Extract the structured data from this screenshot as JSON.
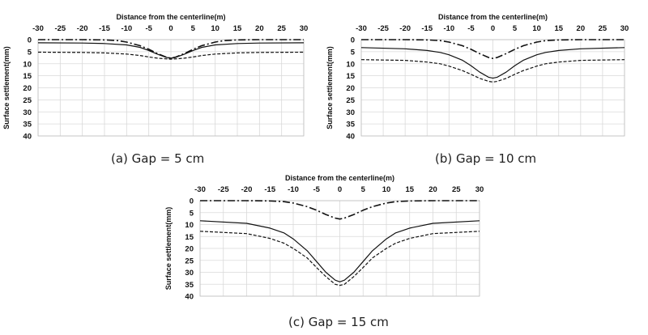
{
  "chart_data": [
    {
      "type": "line",
      "panel": "a",
      "caption": "(a) Gap = 5 cm",
      "xlabel": "Distance from the centerline(m)",
      "ylabel": "Surface settlement(mm)",
      "xlim": [
        -30,
        30
      ],
      "ylim": [
        0,
        40
      ],
      "y_inverted": true,
      "x_ticks": [
        -30,
        -25,
        -20,
        -15,
        -10,
        -5,
        0,
        5,
        10,
        15,
        20,
        25,
        30
      ],
      "y_ticks": [
        0,
        5,
        10,
        15,
        20,
        25,
        30,
        35,
        40
      ],
      "grid": true,
      "series": [
        {
          "style": "solid",
          "x": [
            -30,
            -20,
            -15,
            -10,
            -7,
            -5,
            -3,
            -1,
            0,
            1,
            3,
            5,
            7,
            10,
            15,
            20,
            30
          ],
          "y": [
            1.3,
            1.4,
            1.6,
            2.2,
            3.2,
            4.5,
            6.1,
            7.4,
            7.7,
            7.4,
            6.1,
            4.5,
            3.2,
            2.2,
            1.6,
            1.4,
            1.3
          ]
        },
        {
          "style": "dashed",
          "x": [
            -30,
            -20,
            -15,
            -10,
            -7,
            -5,
            -3,
            -1,
            0,
            1,
            3,
            5,
            7,
            10,
            15,
            20,
            30
          ],
          "y": [
            5.2,
            5.3,
            5.5,
            6.0,
            6.6,
            7.2,
            7.7,
            8.0,
            8.1,
            8.0,
            7.7,
            7.2,
            6.6,
            6.0,
            5.5,
            5.3,
            5.2
          ]
        },
        {
          "style": "dash-dot",
          "x": [
            -30,
            -20,
            -15,
            -12,
            -10,
            -7,
            -5,
            -3,
            -1,
            0,
            1,
            3,
            5,
            7,
            10,
            12,
            15,
            20,
            30
          ],
          "y": [
            0.0,
            0.0,
            0.1,
            0.4,
            1.0,
            2.5,
            4.0,
            5.8,
            7.3,
            7.7,
            7.3,
            5.8,
            4.0,
            2.5,
            1.0,
            0.4,
            0.1,
            0.0,
            0.0
          ]
        }
      ]
    },
    {
      "type": "line",
      "panel": "b",
      "caption": "(b) Gap = 10 cm",
      "xlabel": "Distance from the centerline(m)",
      "ylabel": "Surface settlement(mm)",
      "xlim": [
        -30,
        30
      ],
      "ylim": [
        0,
        40
      ],
      "y_inverted": true,
      "x_ticks": [
        -30,
        -25,
        -20,
        -15,
        -10,
        -5,
        0,
        5,
        10,
        15,
        20,
        25,
        30
      ],
      "y_ticks": [
        0,
        5,
        10,
        15,
        20,
        25,
        30,
        35,
        40
      ],
      "grid": true,
      "series": [
        {
          "style": "solid",
          "x": [
            -30,
            -20,
            -15,
            -12,
            -10,
            -7,
            -5,
            -3,
            -1,
            0,
            1,
            3,
            5,
            7,
            10,
            12,
            15,
            20,
            30
          ],
          "y": [
            3.3,
            3.8,
            4.5,
            5.3,
            6.3,
            8.5,
            10.8,
            13.5,
            15.6,
            16.0,
            15.6,
            13.5,
            10.8,
            8.5,
            6.3,
            5.3,
            4.5,
            3.8,
            3.3
          ]
        },
        {
          "style": "dashed",
          "x": [
            -30,
            -20,
            -15,
            -12,
            -10,
            -7,
            -5,
            -3,
            -1,
            0,
            1,
            3,
            5,
            7,
            10,
            12,
            15,
            20,
            30
          ],
          "y": [
            8.3,
            8.6,
            9.3,
            10.0,
            11.0,
            12.8,
            14.4,
            16.1,
            17.3,
            17.6,
            17.3,
            16.1,
            14.4,
            12.8,
            11.0,
            10.0,
            9.3,
            8.6,
            8.3
          ]
        },
        {
          "style": "dash-dot",
          "x": [
            -30,
            -20,
            -15,
            -12,
            -10,
            -7,
            -5,
            -3,
            -1,
            0,
            1,
            3,
            5,
            7,
            10,
            12,
            15,
            20,
            30
          ],
          "y": [
            0.0,
            0.0,
            0.1,
            0.4,
            1.0,
            2.5,
            4.0,
            5.8,
            7.4,
            7.8,
            7.4,
            5.8,
            4.0,
            2.5,
            1.0,
            0.4,
            0.1,
            0.0,
            0.0
          ]
        }
      ]
    },
    {
      "type": "line",
      "panel": "c",
      "caption": "(c) Gap = 15 cm",
      "xlabel": "Distance from the centerline(m)",
      "ylabel": "Surface settlement(mm)",
      "xlim": [
        -30,
        30
      ],
      "ylim": [
        0,
        40
      ],
      "y_inverted": true,
      "x_ticks": [
        -30,
        -25,
        -20,
        -15,
        -10,
        -5,
        0,
        5,
        10,
        15,
        20,
        25,
        30
      ],
      "y_ticks": [
        0,
        5,
        10,
        15,
        20,
        25,
        30,
        35,
        40
      ],
      "grid": true,
      "series": [
        {
          "style": "solid",
          "x": [
            -30,
            -20,
            -15,
            -12,
            -10,
            -7,
            -5,
            -3,
            -1,
            0,
            1,
            3,
            5,
            7,
            10,
            12,
            15,
            20,
            30
          ],
          "y": [
            8.4,
            9.5,
            11.5,
            13.5,
            16.0,
            21.0,
            25.5,
            30.0,
            33.3,
            34.0,
            33.3,
            30.0,
            25.5,
            21.0,
            16.0,
            13.5,
            11.5,
            9.5,
            8.4
          ]
        },
        {
          "style": "dashed",
          "x": [
            -30,
            -20,
            -15,
            -12,
            -10,
            -7,
            -5,
            -3,
            -1,
            0,
            1,
            3,
            5,
            7,
            10,
            12,
            15,
            20,
            30
          ],
          "y": [
            12.8,
            13.8,
            15.8,
            17.8,
            20.0,
            24.0,
            28.0,
            31.8,
            35.0,
            35.5,
            35.0,
            31.8,
            28.0,
            24.0,
            20.0,
            17.8,
            15.8,
            13.8,
            12.8
          ]
        },
        {
          "style": "dash-dot",
          "x": [
            -30,
            -20,
            -15,
            -12,
            -10,
            -7,
            -5,
            -3,
            -1,
            0,
            1,
            3,
            5,
            7,
            10,
            12,
            15,
            20,
            30
          ],
          "y": [
            0.0,
            0.0,
            0.1,
            0.4,
            1.0,
            2.5,
            4.0,
            5.8,
            7.3,
            7.7,
            7.3,
            5.8,
            4.0,
            2.5,
            1.0,
            0.4,
            0.1,
            0.0,
            0.0
          ]
        }
      ]
    }
  ]
}
